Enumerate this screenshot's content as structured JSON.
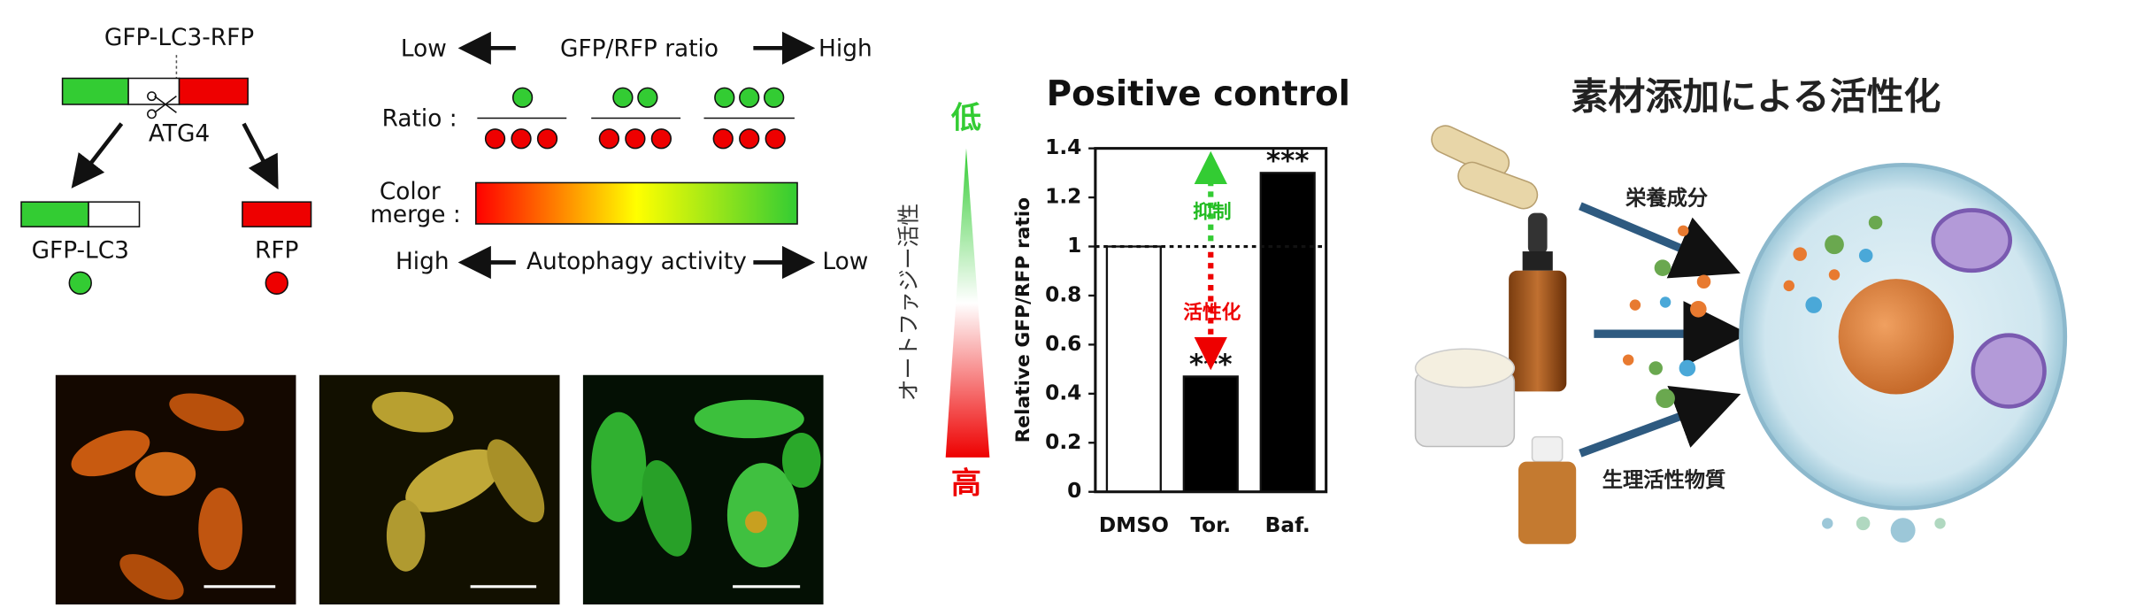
{
  "diagram": {
    "construct": "GFP-LC3-RFP",
    "enzyme": "ATG4",
    "product_left": "GFP-LC3",
    "product_right": "RFP"
  },
  "ratio_panel": {
    "low": "Low",
    "title": "GFP/RFP ratio",
    "high": "High",
    "ratio_label": "Ratio :",
    "color_label_1": "Color",
    "color_label_2": "merge :"
  },
  "activity_panel": {
    "high": "High",
    "title": "Autophagy activity",
    "low": "Low"
  },
  "vertical_scale": {
    "label": "オートファジー活性",
    "top": "低",
    "bottom": "高"
  },
  "chart_data": {
    "type": "bar",
    "title": "Positive control",
    "y_label": "Relative GFP/RFP ratio",
    "categories": [
      "DMSO",
      "Tor.",
      "Baf."
    ],
    "values": [
      1.0,
      0.47,
      1.3
    ],
    "colors": [
      "#ffffff",
      "#000000",
      "#000000"
    ],
    "significance": [
      null,
      "***",
      "***"
    ],
    "reference_line": 1,
    "ylim": [
      0,
      1.4
    ],
    "yticks": [
      0,
      0.2,
      0.4,
      0.6,
      0.8,
      1,
      1.2,
      1.4
    ],
    "arrow_labels": {
      "up": "抑制",
      "down": "活性化"
    }
  },
  "illustration": {
    "title": "素材添加による活性化",
    "label_top": "栄養成分",
    "label_bottom": "生理活性物質"
  }
}
